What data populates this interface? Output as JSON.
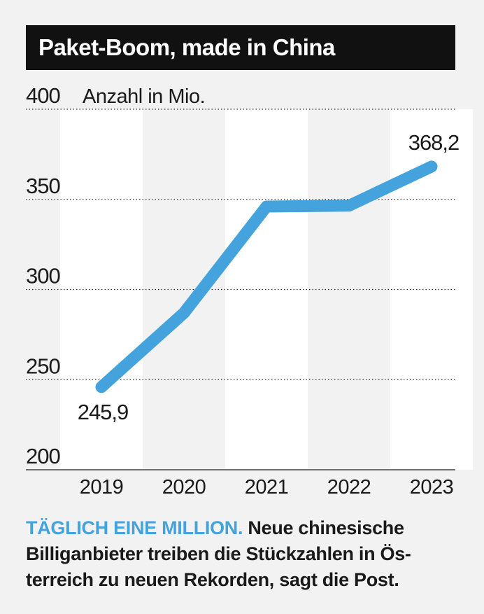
{
  "title": "Paket-Boom, made in China",
  "caption": {
    "lead": "TÄGLICH EINE MILLION.",
    "text": "Neue chinesische Billiganbieter treiben die Stückzahlen in Ös-terreich zu neuen Rekorden, sagt die Post."
  },
  "colors": {
    "line": "#44a3dd",
    "title_bg": "#111111",
    "column_band": "#ffffff",
    "background": "#f2f2f2"
  },
  "chart_data": {
    "type": "line",
    "ylabel": "Anzahl in Mio.",
    "ylim": [
      200,
      400
    ],
    "yticks": [
      200,
      250,
      300,
      350,
      400
    ],
    "grid": true,
    "categories": [
      "2019",
      "2020",
      "2021",
      "2022",
      "2023"
    ],
    "series": [
      {
        "values": [
          245.9,
          287,
          346,
          346.5,
          368.2
        ]
      }
    ],
    "data_labels": [
      {
        "category": "2019",
        "label": "245,9"
      },
      {
        "category": "2023",
        "label": "368,2"
      }
    ]
  }
}
